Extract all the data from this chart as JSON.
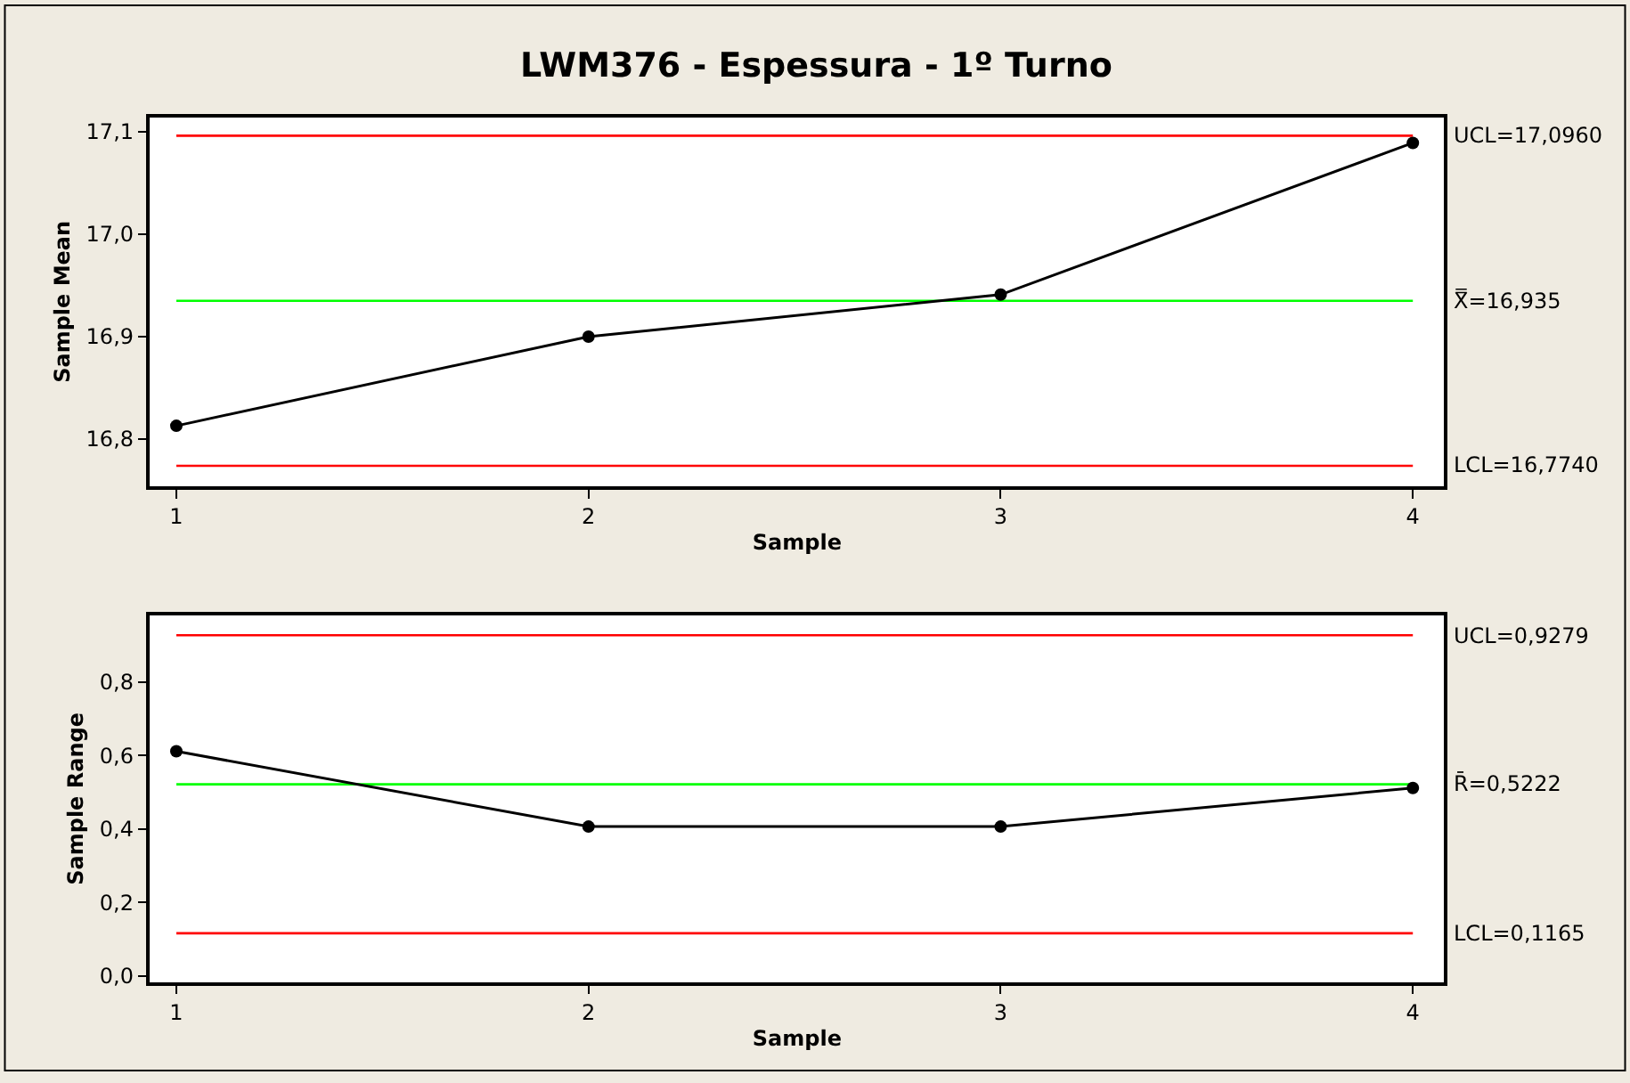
{
  "chart_data": [
    {
      "type": "line",
      "title": "LWM376 - Espessura - 1º Turno",
      "xlabel": "Sample",
      "ylabel": "Sample Mean",
      "x": [
        1,
        2,
        3,
        4
      ],
      "xlim": [
        0.936,
        4.076
      ],
      "xticks": [
        1,
        2,
        3,
        4
      ],
      "ylim": [
        16.754,
        17.114
      ],
      "yticks": [
        {
          "value": 16.8,
          "label": "16,8"
        },
        {
          "value": 16.9,
          "label": "16,9"
        },
        {
          "value": 17.0,
          "label": "17,0"
        },
        {
          "value": 17.1,
          "label": "17,1"
        }
      ],
      "marker": "circle",
      "grid": false,
      "series": [
        {
          "color": "#000000",
          "values": [
            16.813,
            16.9,
            16.941,
            17.089
          ]
        }
      ],
      "ref_lines": [
        {
          "axis": "y",
          "value": 17.096,
          "label": "UCL=17,0960",
          "color": "#ff0000"
        },
        {
          "axis": "y",
          "value": 16.935,
          "label": "X̿=16,935",
          "color": "#00ff00"
        },
        {
          "axis": "y",
          "value": 16.774,
          "label": "LCL=16,7740",
          "color": "#ff0000"
        }
      ]
    },
    {
      "type": "line",
      "xlabel": "Sample",
      "ylabel": "Sample Range",
      "x": [
        1,
        2,
        3,
        4
      ],
      "xlim": [
        0.936,
        4.076
      ],
      "xticks": [
        1,
        2,
        3,
        4
      ],
      "ylim": [
        -0.017,
        0.982
      ],
      "yticks": [
        {
          "value": 0.0,
          "label": "0,0"
        },
        {
          "value": 0.2,
          "label": "0,2"
        },
        {
          "value": 0.4,
          "label": "0,4"
        },
        {
          "value": 0.6,
          "label": "0,6"
        },
        {
          "value": 0.8,
          "label": "0,8"
        }
      ],
      "marker": "circle",
      "grid": false,
      "series": [
        {
          "color": "#000000",
          "values": [
            0.612,
            0.407,
            0.407,
            0.512
          ]
        }
      ],
      "ref_lines": [
        {
          "axis": "y",
          "value": 0.9279,
          "label": "UCL=0,9279",
          "color": "#ff0000"
        },
        {
          "axis": "y",
          "value": 0.5222,
          "label": "R̄=0,5222",
          "color": "#00ff00"
        },
        {
          "axis": "y",
          "value": 0.1165,
          "label": "LCL=0,1165",
          "color": "#ff0000"
        }
      ]
    }
  ]
}
